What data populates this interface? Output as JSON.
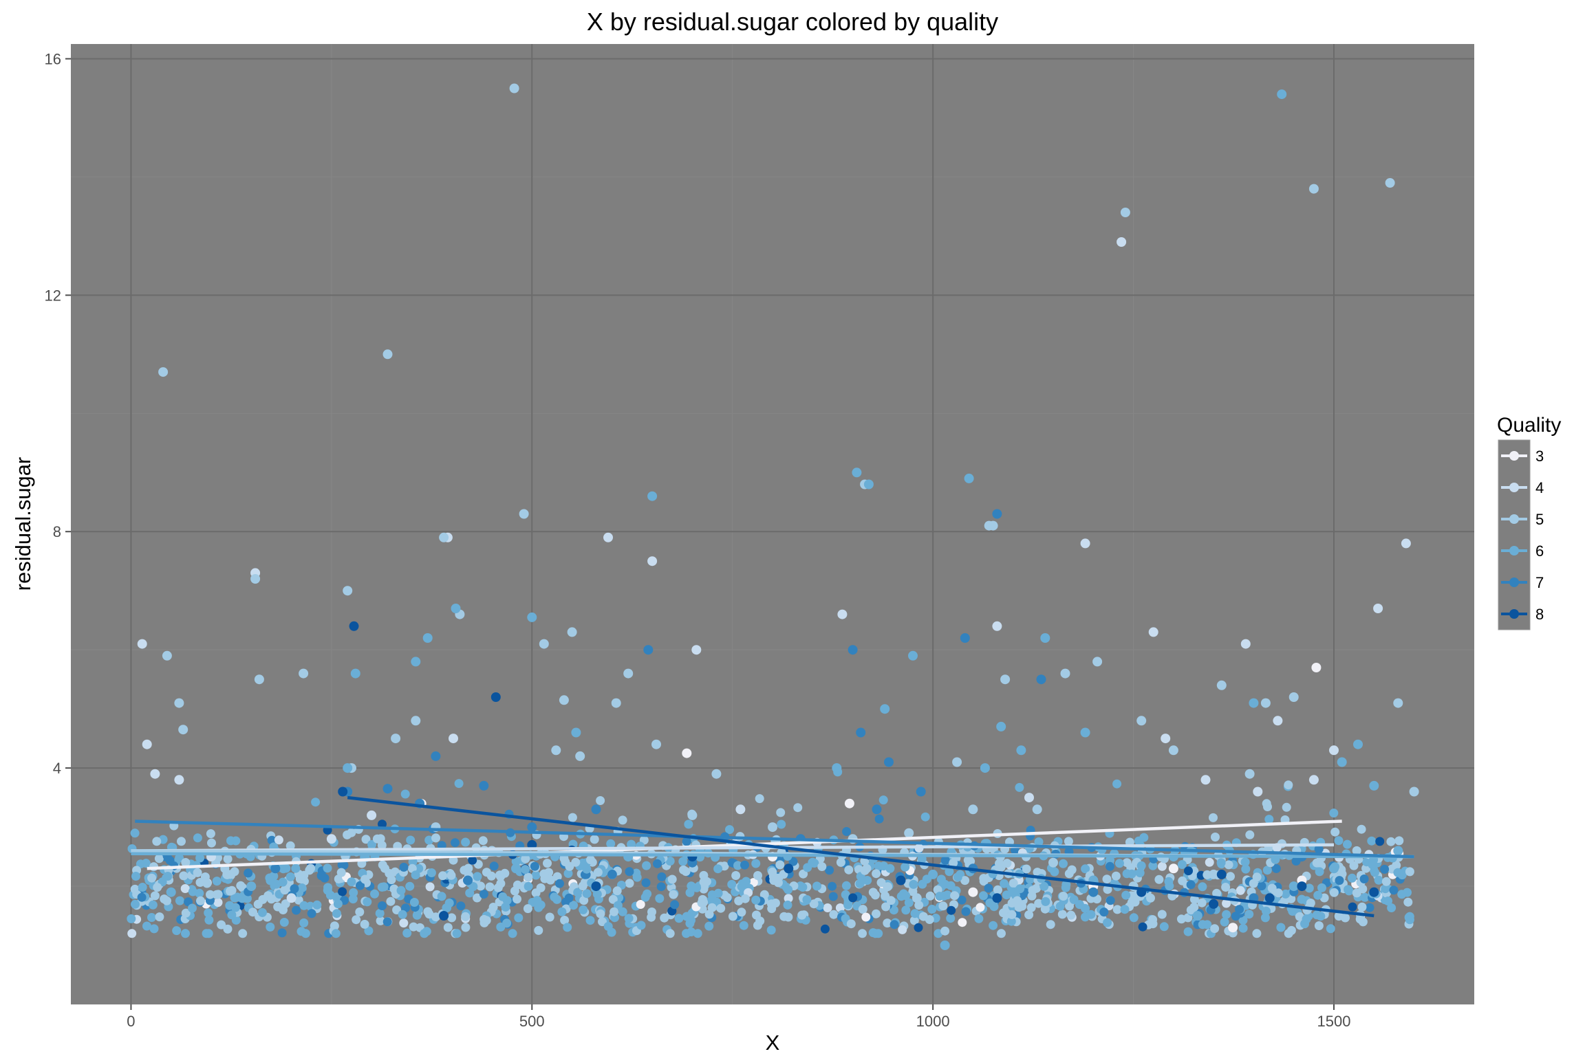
{
  "chart_data": {
    "type": "scatter",
    "title": "X by residual.sugar colored by quality",
    "xlabel": "X",
    "ylabel": "residual.sugar",
    "xlim": [
      -75,
      1675
    ],
    "ylim": [
      0.0,
      16.25
    ],
    "x_ticks": [
      0,
      500,
      1000,
      1500
    ],
    "y_ticks": [
      4,
      8,
      12,
      16
    ],
    "x_tick_labels": [
      "0",
      "500",
      "1000",
      "1500"
    ],
    "y_tick_labels": [
      "4",
      "8",
      "12",
      "16"
    ],
    "grid": true,
    "panel_background": "#7f7f7f",
    "legend": {
      "title": "Quality",
      "position": "right",
      "entries": [
        {
          "label": "3",
          "color": "#f1f1f7"
        },
        {
          "label": "4",
          "color": "#c9ddf0"
        },
        {
          "label": "5",
          "color": "#a3cbe5"
        },
        {
          "label": "6",
          "color": "#6aaed6"
        },
        {
          "label": "7",
          "color": "#3282be"
        },
        {
          "label": "8",
          "color": "#0a549e"
        }
      ]
    },
    "series": [
      {
        "name": "3",
        "color": "#f1f1f7",
        "points": [
          [
            896,
            3.4
          ],
          [
            693,
            4.25
          ],
          [
            1478,
            5.7
          ],
          [
            1374,
            1.3
          ],
          [
            1460,
            2.1
          ],
          [
            800,
            2.5
          ],
          [
            1200,
            2.0
          ],
          [
            600,
            2.2
          ],
          [
            1050,
            1.9
          ],
          [
            1300,
            2.3
          ]
        ],
        "trend": [
          [
            20,
            2.3
          ],
          [
            1510,
            3.1
          ]
        ]
      },
      {
        "name": "4",
        "color": "#c9ddf0",
        "points": [
          [
            14,
            6.1
          ],
          [
            30,
            3.9
          ],
          [
            20,
            4.4
          ],
          [
            155,
            7.3
          ],
          [
            395,
            7.9
          ],
          [
            402,
            4.5
          ],
          [
            595,
            7.9
          ],
          [
            650,
            7.5
          ],
          [
            705,
            6.0
          ],
          [
            887,
            6.6
          ],
          [
            1080,
            6.4
          ],
          [
            1190,
            7.8
          ],
          [
            1235,
            12.9
          ],
          [
            1275,
            6.3
          ],
          [
            1290,
            4.5
          ],
          [
            1390,
            6.1
          ],
          [
            1430,
            4.8
          ],
          [
            1475,
            3.8
          ],
          [
            1500,
            4.3
          ],
          [
            1555,
            6.7
          ],
          [
            1590,
            7.8
          ],
          [
            1405,
            3.6
          ],
          [
            1340,
            3.8
          ],
          [
            760,
            3.3
          ],
          [
            1120,
            3.5
          ],
          [
            300,
            3.2
          ],
          [
            250,
            2.8
          ],
          [
            60,
            3.8
          ],
          [
            100,
            2.5
          ],
          [
            200,
            1.8
          ]
        ],
        "trend": [
          [
            0,
            2.6
          ],
          [
            1500,
            2.7
          ]
        ]
      },
      {
        "name": "5",
        "color": "#a3cbe5",
        "points": [
          [
            40,
            10.7
          ],
          [
            45,
            5.9
          ],
          [
            60,
            5.1
          ],
          [
            65,
            4.65
          ],
          [
            155,
            7.2
          ],
          [
            160,
            5.5
          ],
          [
            215,
            5.6
          ],
          [
            270,
            7.0
          ],
          [
            275,
            4.0
          ],
          [
            320,
            11.0
          ],
          [
            330,
            4.5
          ],
          [
            355,
            4.8
          ],
          [
            390,
            7.9
          ],
          [
            410,
            6.6
          ],
          [
            478,
            15.5
          ],
          [
            490,
            8.3
          ],
          [
            515,
            6.1
          ],
          [
            530,
            4.3
          ],
          [
            540,
            5.15
          ],
          [
            550,
            6.3
          ],
          [
            560,
            4.2
          ],
          [
            605,
            5.1
          ],
          [
            620,
            5.6
          ],
          [
            655,
            4.4
          ],
          [
            730,
            3.9
          ],
          [
            915,
            8.8
          ],
          [
            970,
            2.9
          ],
          [
            1030,
            4.1
          ],
          [
            1050,
            3.3
          ],
          [
            1070,
            8.1
          ],
          [
            1075,
            8.1
          ],
          [
            1090,
            5.5
          ],
          [
            1130,
            3.3
          ],
          [
            1165,
            5.6
          ],
          [
            1205,
            5.8
          ],
          [
            1240,
            13.4
          ],
          [
            1260,
            4.8
          ],
          [
            1300,
            4.3
          ],
          [
            1360,
            5.4
          ],
          [
            1395,
            3.9
          ],
          [
            1415,
            5.1
          ],
          [
            1450,
            5.2
          ],
          [
            1475,
            13.8
          ],
          [
            1570,
            13.9
          ],
          [
            1580,
            5.1
          ],
          [
            1600,
            3.6
          ],
          [
            800,
            3.0
          ],
          [
            700,
            3.2
          ],
          [
            900,
            2.8
          ],
          [
            1150,
            2.4
          ],
          [
            1350,
            2.2
          ],
          [
            450,
            2.6
          ],
          [
            380,
            3.0
          ],
          [
            120,
            2.2
          ],
          [
            1250,
            2.0
          ],
          [
            980,
            1.8
          ]
        ],
        "trend": [
          [
            0,
            2.6
          ],
          [
            1600,
            2.5
          ]
        ]
      },
      {
        "name": "6",
        "color": "#6aaed6",
        "points": [
          [
            270,
            4.0
          ],
          [
            280,
            5.6
          ],
          [
            355,
            5.8
          ],
          [
            370,
            6.2
          ],
          [
            405,
            6.7
          ],
          [
            500,
            6.55
          ],
          [
            555,
            4.6
          ],
          [
            650,
            8.6
          ],
          [
            880,
            4.0
          ],
          [
            905,
            9.0
          ],
          [
            920,
            8.8
          ],
          [
            940,
            5.0
          ],
          [
            975,
            5.9
          ],
          [
            1045,
            8.9
          ],
          [
            1065,
            4.0
          ],
          [
            1085,
            4.7
          ],
          [
            1110,
            4.3
          ],
          [
            1140,
            6.2
          ],
          [
            1190,
            4.6
          ],
          [
            1400,
            5.1
          ],
          [
            1435,
            15.4
          ],
          [
            1510,
            4.1
          ],
          [
            1530,
            4.4
          ],
          [
            1550,
            3.7
          ],
          [
            1580,
            2.6
          ],
          [
            1300,
            2.5
          ],
          [
            1200,
            2.1
          ],
          [
            1100,
            1.9
          ],
          [
            1000,
            2.2
          ],
          [
            850,
            2.4
          ],
          [
            750,
            2.7
          ],
          [
            620,
            2.5
          ],
          [
            480,
            2.3
          ],
          [
            300,
            2.6
          ],
          [
            150,
            2.0
          ],
          [
            50,
            1.9
          ],
          [
            1450,
            2.0
          ],
          [
            1500,
            2.3
          ],
          [
            1015,
            1.0
          ],
          [
            1330,
            1.5
          ]
        ],
        "trend": [
          [
            0,
            2.55
          ],
          [
            1600,
            2.5
          ]
        ]
      },
      {
        "name": "7",
        "color": "#3282be",
        "points": [
          [
            270,
            3.6
          ],
          [
            320,
            3.65
          ],
          [
            360,
            3.4
          ],
          [
            380,
            4.2
          ],
          [
            440,
            3.7
          ],
          [
            500,
            3.0
          ],
          [
            580,
            3.3
          ],
          [
            645,
            6.0
          ],
          [
            835,
            2.8
          ],
          [
            900,
            6.0
          ],
          [
            910,
            4.6
          ],
          [
            930,
            3.3
          ],
          [
            945,
            4.1
          ],
          [
            985,
            3.6
          ],
          [
            1040,
            6.2
          ],
          [
            1080,
            8.3
          ],
          [
            1135,
            5.5
          ],
          [
            1050,
            2.3
          ],
          [
            1200,
            1.9
          ],
          [
            1400,
            1.8
          ],
          [
            1460,
            2.5
          ],
          [
            1550,
            1.9
          ],
          [
            700,
            2.4
          ],
          [
            600,
            2.2
          ],
          [
            420,
            2.1
          ],
          [
            180,
            2.3
          ]
        ],
        "trend": [
          [
            5,
            3.1
          ],
          [
            1600,
            2.5
          ]
        ]
      },
      {
        "name": "8",
        "color": "#0a549e",
        "points": [
          [
            264,
            3.6
          ],
          [
            278,
            6.4
          ],
          [
            390,
            1.5
          ],
          [
            455,
            5.2
          ],
          [
            500,
            2.7
          ],
          [
            580,
            2.0
          ],
          [
            820,
            2.3
          ],
          [
            1080,
            1.8
          ],
          [
            1350,
            1.7
          ],
          [
            1420,
            1.8
          ],
          [
            1550,
            1.9
          ],
          [
            1360,
            2.2
          ],
          [
            1460,
            2.0
          ],
          [
            700,
            2.5
          ],
          [
            960,
            2.1
          ],
          [
            1260,
            1.9
          ]
        ],
        "trend": [
          [
            270,
            3.5
          ],
          [
            1550,
            1.5
          ]
        ]
      }
    ]
  }
}
